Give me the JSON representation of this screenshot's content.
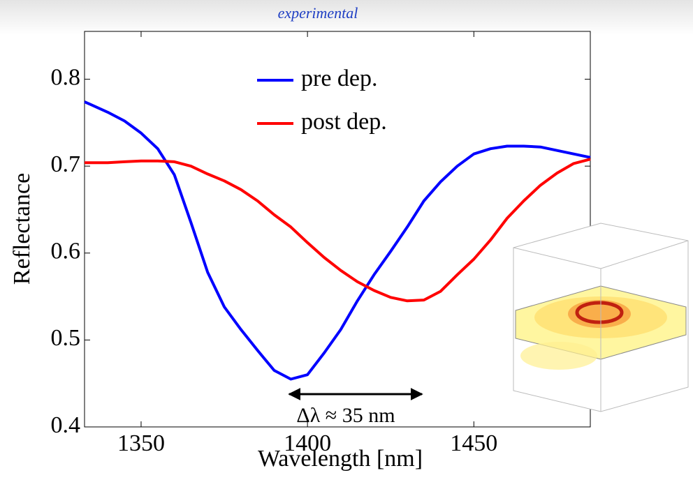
{
  "chart_data": {
    "type": "line",
    "title": "experimental",
    "x_label": "Wavelength [nm]",
    "y_label": "Reflectance",
    "annotation": "Δλ ≈ 35 nm",
    "x": [
      1333,
      1340,
      1345,
      1350,
      1355,
      1360,
      1365,
      1370,
      1375,
      1380,
      1385,
      1390,
      1395,
      1400,
      1405,
      1410,
      1415,
      1420,
      1425,
      1430,
      1435,
      1440,
      1445,
      1450,
      1455,
      1460,
      1465,
      1470,
      1475,
      1480,
      1485
    ],
    "series": [
      {
        "name": "pre dep.",
        "color": "#0000ff",
        "values": [
          0.774,
          0.762,
          0.752,
          0.738,
          0.72,
          0.69,
          0.635,
          0.578,
          0.538,
          0.512,
          0.488,
          0.465,
          0.455,
          0.46,
          0.485,
          0.512,
          0.545,
          0.575,
          0.602,
          0.63,
          0.66,
          0.682,
          0.7,
          0.714,
          0.72,
          0.723,
          0.723,
          0.722,
          0.718,
          0.714,
          0.71
        ]
      },
      {
        "name": "post dep.",
        "color": "#ff0000",
        "values": [
          0.704,
          0.704,
          0.705,
          0.706,
          0.706,
          0.705,
          0.7,
          0.691,
          0.683,
          0.673,
          0.66,
          0.644,
          0.63,
          0.612,
          0.595,
          0.58,
          0.567,
          0.557,
          0.549,
          0.545,
          0.546,
          0.556,
          0.575,
          0.593,
          0.615,
          0.64,
          0.66,
          0.678,
          0.692,
          0.703,
          0.708
        ]
      }
    ],
    "xlim": [
      1333,
      1485
    ],
    "xticks": [
      1350,
      1400,
      1450
    ],
    "ylim": [
      0.4,
      0.855
    ],
    "yticks": [
      0.4,
      0.5,
      0.6,
      0.7,
      0.8
    ],
    "grid": false
  }
}
